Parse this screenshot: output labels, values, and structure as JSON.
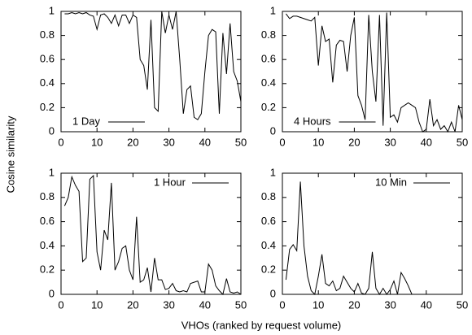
{
  "xlabel": "VHOs (ranked by request volume)",
  "ylabel": "Cosine similarity",
  "chart_data": [
    {
      "type": "line",
      "legend": "lower left",
      "xlim": [
        0,
        50
      ],
      "ylim": [
        0,
        1
      ],
      "xticks": [
        0,
        10,
        20,
        30,
        40,
        50
      ],
      "yticks": [
        0,
        0.2,
        0.4,
        0.6,
        0.8,
        1
      ],
      "x": [
        1,
        2,
        3,
        4,
        5,
        6,
        7,
        8,
        9,
        10,
        11,
        12,
        13,
        14,
        15,
        16,
        17,
        18,
        19,
        20,
        21,
        22,
        23,
        24,
        25,
        26,
        27,
        28,
        29,
        30,
        31,
        32,
        33,
        34,
        35,
        36,
        37,
        38,
        39,
        40,
        41,
        42,
        43,
        44,
        45,
        46,
        47,
        48,
        49,
        50
      ],
      "series": [
        {
          "name": "1 Day",
          "color": "#000000",
          "values": [
            0.98,
            0.98,
            0.99,
            0.98,
            0.99,
            0.98,
            0.99,
            0.97,
            0.96,
            0.85,
            0.97,
            0.98,
            0.95,
            0.9,
            0.97,
            0.88,
            0.97,
            0.97,
            0.9,
            0.97,
            0.95,
            0.6,
            0.55,
            0.35,
            0.93,
            0.2,
            0.17,
            1.0,
            0.82,
            0.97,
            0.85,
            1.0,
            0.6,
            0.15,
            0.35,
            0.38,
            0.12,
            0.1,
            0.15,
            0.5,
            0.8,
            0.85,
            0.83,
            0.15,
            0.82,
            0.48,
            0.9,
            0.5,
            0.42,
            0.25
          ]
        }
      ]
    },
    {
      "type": "line",
      "legend": "lower left",
      "xlim": [
        0,
        50
      ],
      "ylim": [
        0,
        1
      ],
      "xticks": [
        0,
        10,
        20,
        30,
        40,
        50
      ],
      "yticks": [
        0,
        0.2,
        0.4,
        0.6,
        0.8,
        1
      ],
      "x": [
        1,
        2,
        3,
        4,
        5,
        6,
        7,
        8,
        9,
        10,
        11,
        12,
        13,
        14,
        15,
        16,
        17,
        18,
        19,
        20,
        21,
        22,
        23,
        24,
        25,
        26,
        27,
        28,
        29,
        30,
        31,
        32,
        33,
        34,
        35,
        36,
        37,
        38,
        39,
        40,
        41,
        42,
        43,
        44,
        45,
        46,
        47,
        48,
        49,
        50
      ],
      "series": [
        {
          "name": "4 Hours",
          "color": "#000000",
          "values": [
            0.98,
            0.94,
            0.96,
            0.96,
            0.95,
            0.94,
            0.93,
            0.92,
            0.95,
            0.55,
            0.88,
            0.75,
            0.77,
            0.41,
            0.72,
            0.76,
            0.75,
            0.5,
            0.8,
            0.95,
            0.3,
            0.22,
            0.1,
            0.97,
            0.5,
            0.25,
            0.97,
            0.05,
            0.99,
            0.12,
            0.14,
            0.08,
            0.2,
            0.22,
            0.24,
            0.22,
            0.2,
            0.08,
            0.0,
            0.02,
            0.27,
            0.05,
            0.1,
            0.02,
            0.05,
            0.0,
            0.08,
            0.0,
            0.22,
            0.1
          ]
        }
      ]
    },
    {
      "type": "line",
      "legend": "upper right",
      "xlim": [
        0,
        50
      ],
      "ylim": [
        0,
        1
      ],
      "xticks": [
        0,
        10,
        20,
        30,
        40,
        50
      ],
      "yticks": [
        0,
        0.2,
        0.4,
        0.6,
        0.8,
        1
      ],
      "x": [
        1,
        2,
        3,
        4,
        5,
        6,
        7,
        8,
        9,
        10,
        11,
        12,
        13,
        14,
        15,
        16,
        17,
        18,
        19,
        20,
        21,
        22,
        23,
        24,
        25,
        26,
        27,
        28,
        29,
        30,
        31,
        32,
        33,
        34,
        35,
        36,
        37,
        38,
        39,
        40,
        41,
        42,
        43,
        44,
        45,
        46,
        47,
        48,
        49,
        50
      ],
      "series": [
        {
          "name": "1 Hour",
          "color": "#000000",
          "values": [
            0.73,
            0.8,
            0.97,
            0.9,
            0.85,
            0.27,
            0.3,
            0.95,
            0.98,
            0.35,
            0.2,
            0.53,
            0.45,
            0.92,
            0.2,
            0.27,
            0.38,
            0.4,
            0.2,
            0.12,
            0.64,
            0.1,
            0.12,
            0.22,
            0.02,
            0.3,
            0.12,
            0.12,
            0.04,
            0.05,
            0.09,
            0.03,
            0.02,
            0.03,
            0.02,
            0.09,
            0.1,
            0.11,
            0.02,
            0.02,
            0.25,
            0.2,
            0.07,
            0.03,
            0.0,
            0.13,
            0.02,
            0.01,
            0.02,
            0.0
          ]
        }
      ]
    },
    {
      "type": "line",
      "legend": "upper right",
      "xlim": [
        0,
        50
      ],
      "ylim": [
        0,
        1
      ],
      "xticks": [
        0,
        10,
        20,
        30,
        40,
        50
      ],
      "yticks": [
        0,
        0.2,
        0.4,
        0.6,
        0.8,
        1
      ],
      "x": [
        1,
        2,
        3,
        4,
        5,
        6,
        7,
        8,
        9,
        10,
        11,
        12,
        13,
        14,
        15,
        16,
        17,
        18,
        19,
        20,
        21,
        22,
        23,
        24,
        25,
        26,
        27,
        28,
        29,
        30,
        31,
        32,
        33,
        34,
        35,
        36,
        37,
        38,
        39,
        40,
        41,
        42,
        43,
        44,
        45,
        46,
        47,
        48,
        49,
        50
      ],
      "series": [
        {
          "name": "10 Min",
          "color": "#000000",
          "values": [
            0.12,
            0.37,
            0.41,
            0.36,
            0.93,
            0.4,
            0.15,
            0.03,
            0.0,
            0.15,
            0.33,
            0.09,
            0.07,
            0.11,
            0.03,
            0.05,
            0.15,
            0.1,
            0.05,
            0.02,
            0.09,
            0.01,
            0.0,
            0.05,
            0.35,
            0.05,
            0.0,
            0.05,
            0.0,
            0.04,
            0.11,
            0.0,
            0.18,
            0.13,
            0.07,
            0.0,
            0,
            0,
            0,
            0,
            0,
            0,
            0,
            0,
            0,
            0,
            0,
            0,
            0,
            0
          ]
        }
      ]
    }
  ]
}
